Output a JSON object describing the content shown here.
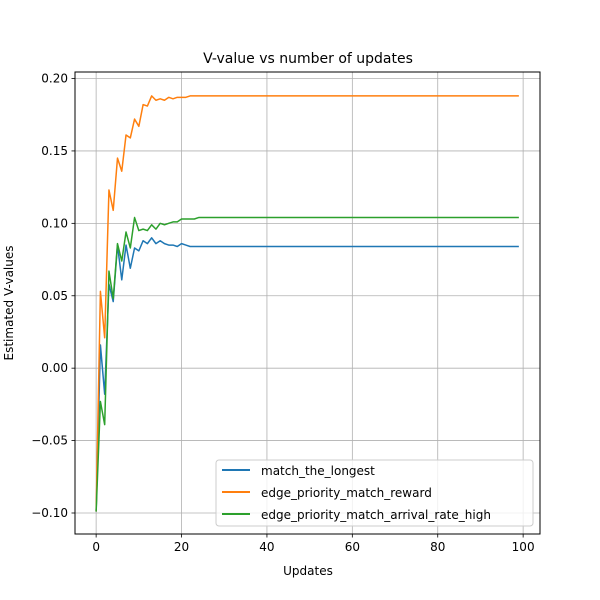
{
  "chart_data": {
    "type": "line",
    "title": "V-value vs number of updates",
    "xlabel": "Updates",
    "ylabel": "Estimated V-values",
    "xlim": [
      -4.95,
      103.95
    ],
    "ylim": [
      -0.1145,
      0.2045
    ],
    "x_ticks": [
      0,
      20,
      40,
      60,
      80,
      100
    ],
    "x_tick_labels": [
      "0",
      "20",
      "40",
      "60",
      "80",
      "100"
    ],
    "y_ticks": [
      -0.1,
      -0.05,
      0.0,
      0.05,
      0.1,
      0.15,
      0.2
    ],
    "y_tick_labels": [
      "−0.10",
      "−0.05",
      "0.00",
      "0.05",
      "0.10",
      "0.15",
      "0.20"
    ],
    "grid": true,
    "legend_position": "lower-right",
    "x_range": [
      0,
      99
    ],
    "series": [
      {
        "name": "match_the_longest",
        "color": "#1f77b4",
        "values": [
          -0.099,
          0.016,
          -0.018,
          0.058,
          0.046,
          0.085,
          0.061,
          0.085,
          0.069,
          0.083,
          0.081,
          0.088,
          0.086,
          0.09,
          0.086,
          0.088,
          0.086,
          0.085,
          0.085,
          0.084,
          0.086,
          0.085,
          0.084,
          0.084
        ],
        "tail_value": 0.084
      },
      {
        "name": "edge_priority_match_reward",
        "color": "#ff7f0e",
        "values": [
          -0.099,
          0.053,
          0.021,
          0.123,
          0.109,
          0.145,
          0.136,
          0.161,
          0.159,
          0.172,
          0.167,
          0.182,
          0.181,
          0.188,
          0.185,
          0.186,
          0.185,
          0.187,
          0.186,
          0.187,
          0.187,
          0.187,
          0.188,
          0.188,
          0.188,
          0.188,
          0.188,
          0.188
        ],
        "tail_value": 0.188
      },
      {
        "name": "edge_priority_match_arrival_rate_high",
        "color": "#2ca02c",
        "values": [
          -0.099,
          -0.023,
          -0.039,
          0.067,
          0.048,
          0.086,
          0.074,
          0.094,
          0.083,
          0.104,
          0.095,
          0.096,
          0.095,
          0.099,
          0.096,
          0.1,
          0.099,
          0.1,
          0.101,
          0.101,
          0.103,
          0.103,
          0.103,
          0.103,
          0.104,
          0.104,
          0.104,
          0.104,
          0.104,
          0.104,
          0.104
        ],
        "tail_value": 0.104
      }
    ]
  }
}
